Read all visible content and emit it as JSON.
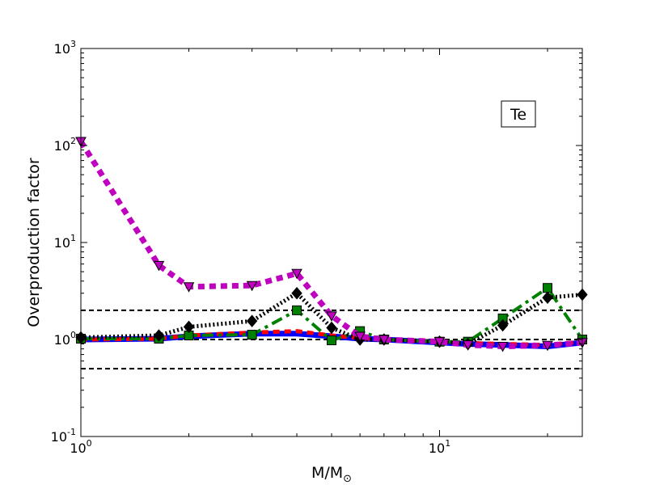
{
  "chart_data": {
    "type": "line",
    "title": "",
    "annotation": "Te",
    "xlabel": "M/M",
    "xlabel_subscript": "⊙",
    "ylabel": "Overproduction factor",
    "xscale": "log",
    "yscale": "log",
    "xlim": [
      1,
      25
    ],
    "ylim": [
      0.1,
      1000
    ],
    "x_ticks": [
      {
        "value": 1,
        "base": "10",
        "exp": "0"
      },
      {
        "value": 10,
        "base": "10",
        "exp": "1"
      }
    ],
    "y_ticks": [
      {
        "value": 0.1,
        "base": "10",
        "exp": "-1"
      },
      {
        "value": 1,
        "base": "10",
        "exp": "0"
      },
      {
        "value": 10,
        "base": "10",
        "exp": "1"
      },
      {
        "value": 100,
        "base": "10",
        "exp": "2"
      },
      {
        "value": 1000,
        "base": "10",
        "exp": "3"
      }
    ],
    "reference_lines": [
      0.5,
      1.0,
      2.0
    ],
    "series": [
      {
        "color": "#0000ff",
        "dash": "solid",
        "width": 7,
        "marker": "none",
        "x": [
          1,
          1.65,
          2,
          3,
          4,
          5,
          6,
          7,
          10,
          12,
          15,
          20,
          25
        ],
        "y": [
          1.0,
          1.02,
          1.08,
          1.15,
          1.15,
          1.08,
          1.02,
          1.0,
          0.93,
          0.9,
          0.88,
          0.85,
          0.93
        ]
      },
      {
        "color": "#ff0000",
        "dash": "8,6",
        "width": 5,
        "marker": "none",
        "x": [
          1,
          1.65,
          2,
          3,
          4,
          5,
          6,
          7,
          10,
          12,
          15,
          20,
          25
        ],
        "y": [
          1.0,
          1.02,
          1.1,
          1.18,
          1.22,
          1.1,
          1.03,
          1.0,
          0.95,
          0.92,
          0.9,
          0.88,
          0.95
        ]
      },
      {
        "color": "#008000",
        "dash": "14,6,4,6",
        "width": 4,
        "marker": "square",
        "x": [
          1,
          1.65,
          2,
          3,
          4,
          5,
          6,
          7,
          10,
          12,
          15,
          20,
          25
        ],
        "y": [
          1.02,
          1.02,
          1.1,
          1.12,
          2.0,
          0.98,
          1.22,
          1.0,
          0.95,
          0.95,
          1.65,
          3.4,
          1.0
        ]
      },
      {
        "color": "#000000",
        "dash": "2,3",
        "width": 5,
        "marker": "diamond",
        "x": [
          1,
          1.65,
          2,
          3,
          4,
          5,
          6,
          7,
          10,
          12,
          15,
          20,
          25
        ],
        "y": [
          1.05,
          1.1,
          1.35,
          1.55,
          3.0,
          1.32,
          1.0,
          1.0,
          0.95,
          0.9,
          1.4,
          2.7,
          2.9
        ]
      },
      {
        "color": "#bf00bf",
        "dash": "8,6",
        "width": 7,
        "marker": "triangle-down",
        "x": [
          1,
          1.65,
          2,
          3,
          4,
          5,
          6,
          7,
          10,
          12,
          15,
          20,
          25
        ],
        "y": [
          110,
          5.8,
          3.5,
          3.6,
          4.8,
          1.75,
          1.08,
          1.0,
          0.95,
          0.88,
          0.85,
          0.87,
          0.93
        ]
      }
    ]
  }
}
